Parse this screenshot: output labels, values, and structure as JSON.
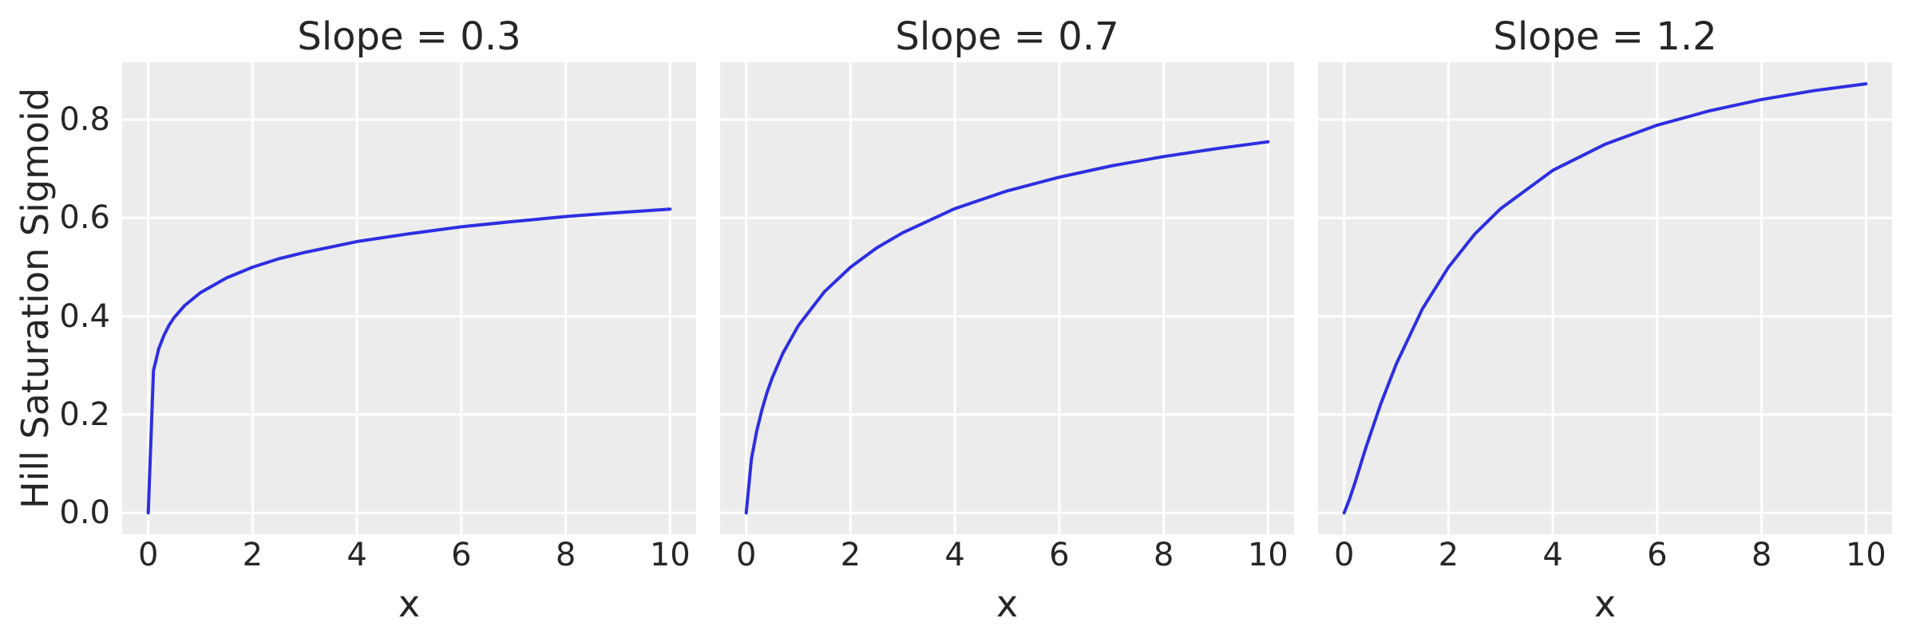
{
  "figure": {
    "background": "#ffffff",
    "axes_background": "#ececec",
    "grid_color": "#ffffff",
    "text_color": "#262626",
    "line_color": "#2e2ee1"
  },
  "chart_data": {
    "type": "line",
    "title": "",
    "xlabel": "x",
    "ylabel": "Hill Saturation Sigmoid",
    "grid": true,
    "legend": false,
    "xlim": [
      -0.5,
      10.5
    ],
    "ylim": [
      -0.0437,
      0.917
    ],
    "xticks": [
      0,
      2,
      4,
      6,
      8,
      10
    ],
    "xtick_labels": [
      "0",
      "2",
      "4",
      "6",
      "8",
      "10"
    ],
    "yticks": [
      0.0,
      0.2,
      0.4,
      0.6,
      0.8
    ],
    "ytick_labels": [
      "0.0",
      "0.2",
      "0.4",
      "0.6",
      "0.8"
    ],
    "x": [
      0,
      0.1,
      0.2,
      0.3,
      0.4,
      0.5,
      0.7,
      1,
      1.5,
      2,
      2.5,
      3,
      4,
      5,
      6,
      7,
      8,
      9,
      10
    ],
    "subplots": [
      {
        "title": "Slope = 0.3",
        "xlabel": "x",
        "values": [
          0,
          0.289,
          0.334,
          0.361,
          0.382,
          0.398,
          0.422,
          0.448,
          0.478,
          0.5,
          0.517,
          0.53,
          0.552,
          0.568,
          0.582,
          0.593,
          0.603,
          0.611,
          0.618
        ]
      },
      {
        "title": "Slope = 0.7",
        "xlabel": "x",
        "values": [
          0,
          0.109,
          0.166,
          0.209,
          0.245,
          0.275,
          0.324,
          0.381,
          0.45,
          0.5,
          0.539,
          0.57,
          0.619,
          0.655,
          0.683,
          0.706,
          0.725,
          0.741,
          0.755
        ]
      },
      {
        "title": "Slope = 1.2",
        "xlabel": "x",
        "values": [
          0,
          0.027,
          0.059,
          0.093,
          0.127,
          0.159,
          0.221,
          0.303,
          0.415,
          0.5,
          0.567,
          0.619,
          0.697,
          0.75,
          0.789,
          0.818,
          0.841,
          0.859,
          0.873
        ]
      }
    ]
  }
}
